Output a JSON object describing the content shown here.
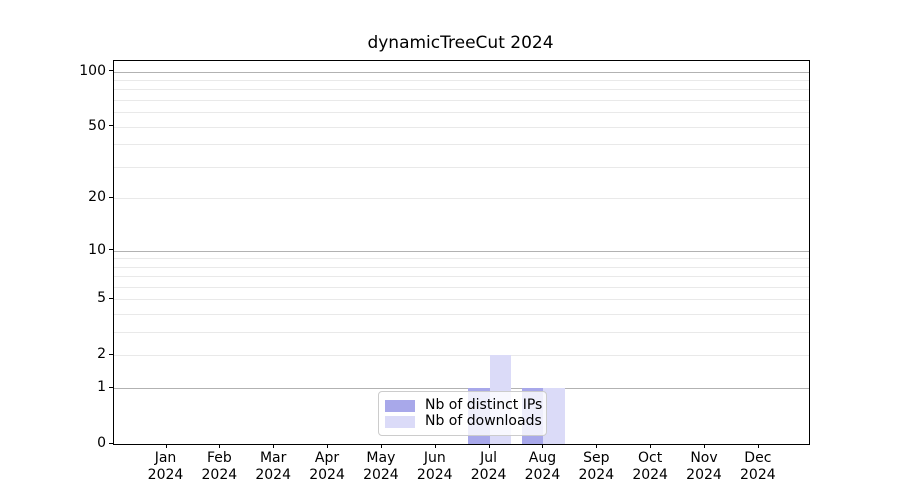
{
  "title": "dynamicTreeCut 2024",
  "chart_data": {
    "type": "bar",
    "title": "dynamicTreeCut 2024",
    "categories": [
      "Jan",
      "Feb",
      "Mar",
      "Apr",
      "May",
      "Jun",
      "Jul",
      "Aug",
      "Sep",
      "Oct",
      "Nov",
      "Dec"
    ],
    "category_year": "2024",
    "series": [
      {
        "name": "Nb of distinct IPs",
        "color": "#a8a8ea",
        "values": [
          0,
          0,
          0,
          0,
          0,
          0,
          1,
          1,
          0,
          0,
          0,
          0
        ]
      },
      {
        "name": "Nb of downloads",
        "color": "#dbdbf8",
        "values": [
          0,
          0,
          0,
          0,
          0,
          0,
          2,
          1,
          0,
          0,
          0,
          0
        ]
      }
    ],
    "yticks": [
      0,
      1,
      2,
      5,
      10,
      20,
      50,
      100
    ],
    "y_major_gridlines": [
      1,
      10,
      100
    ],
    "y_scale": "log10(1+v)",
    "ylim": [
      0,
      115
    ],
    "grid": true,
    "legend_position": "lower center",
    "colors": {
      "major_grid": "#b2b2b2",
      "minor_grid": "#e9e9e9",
      "axis": "#000000"
    }
  }
}
